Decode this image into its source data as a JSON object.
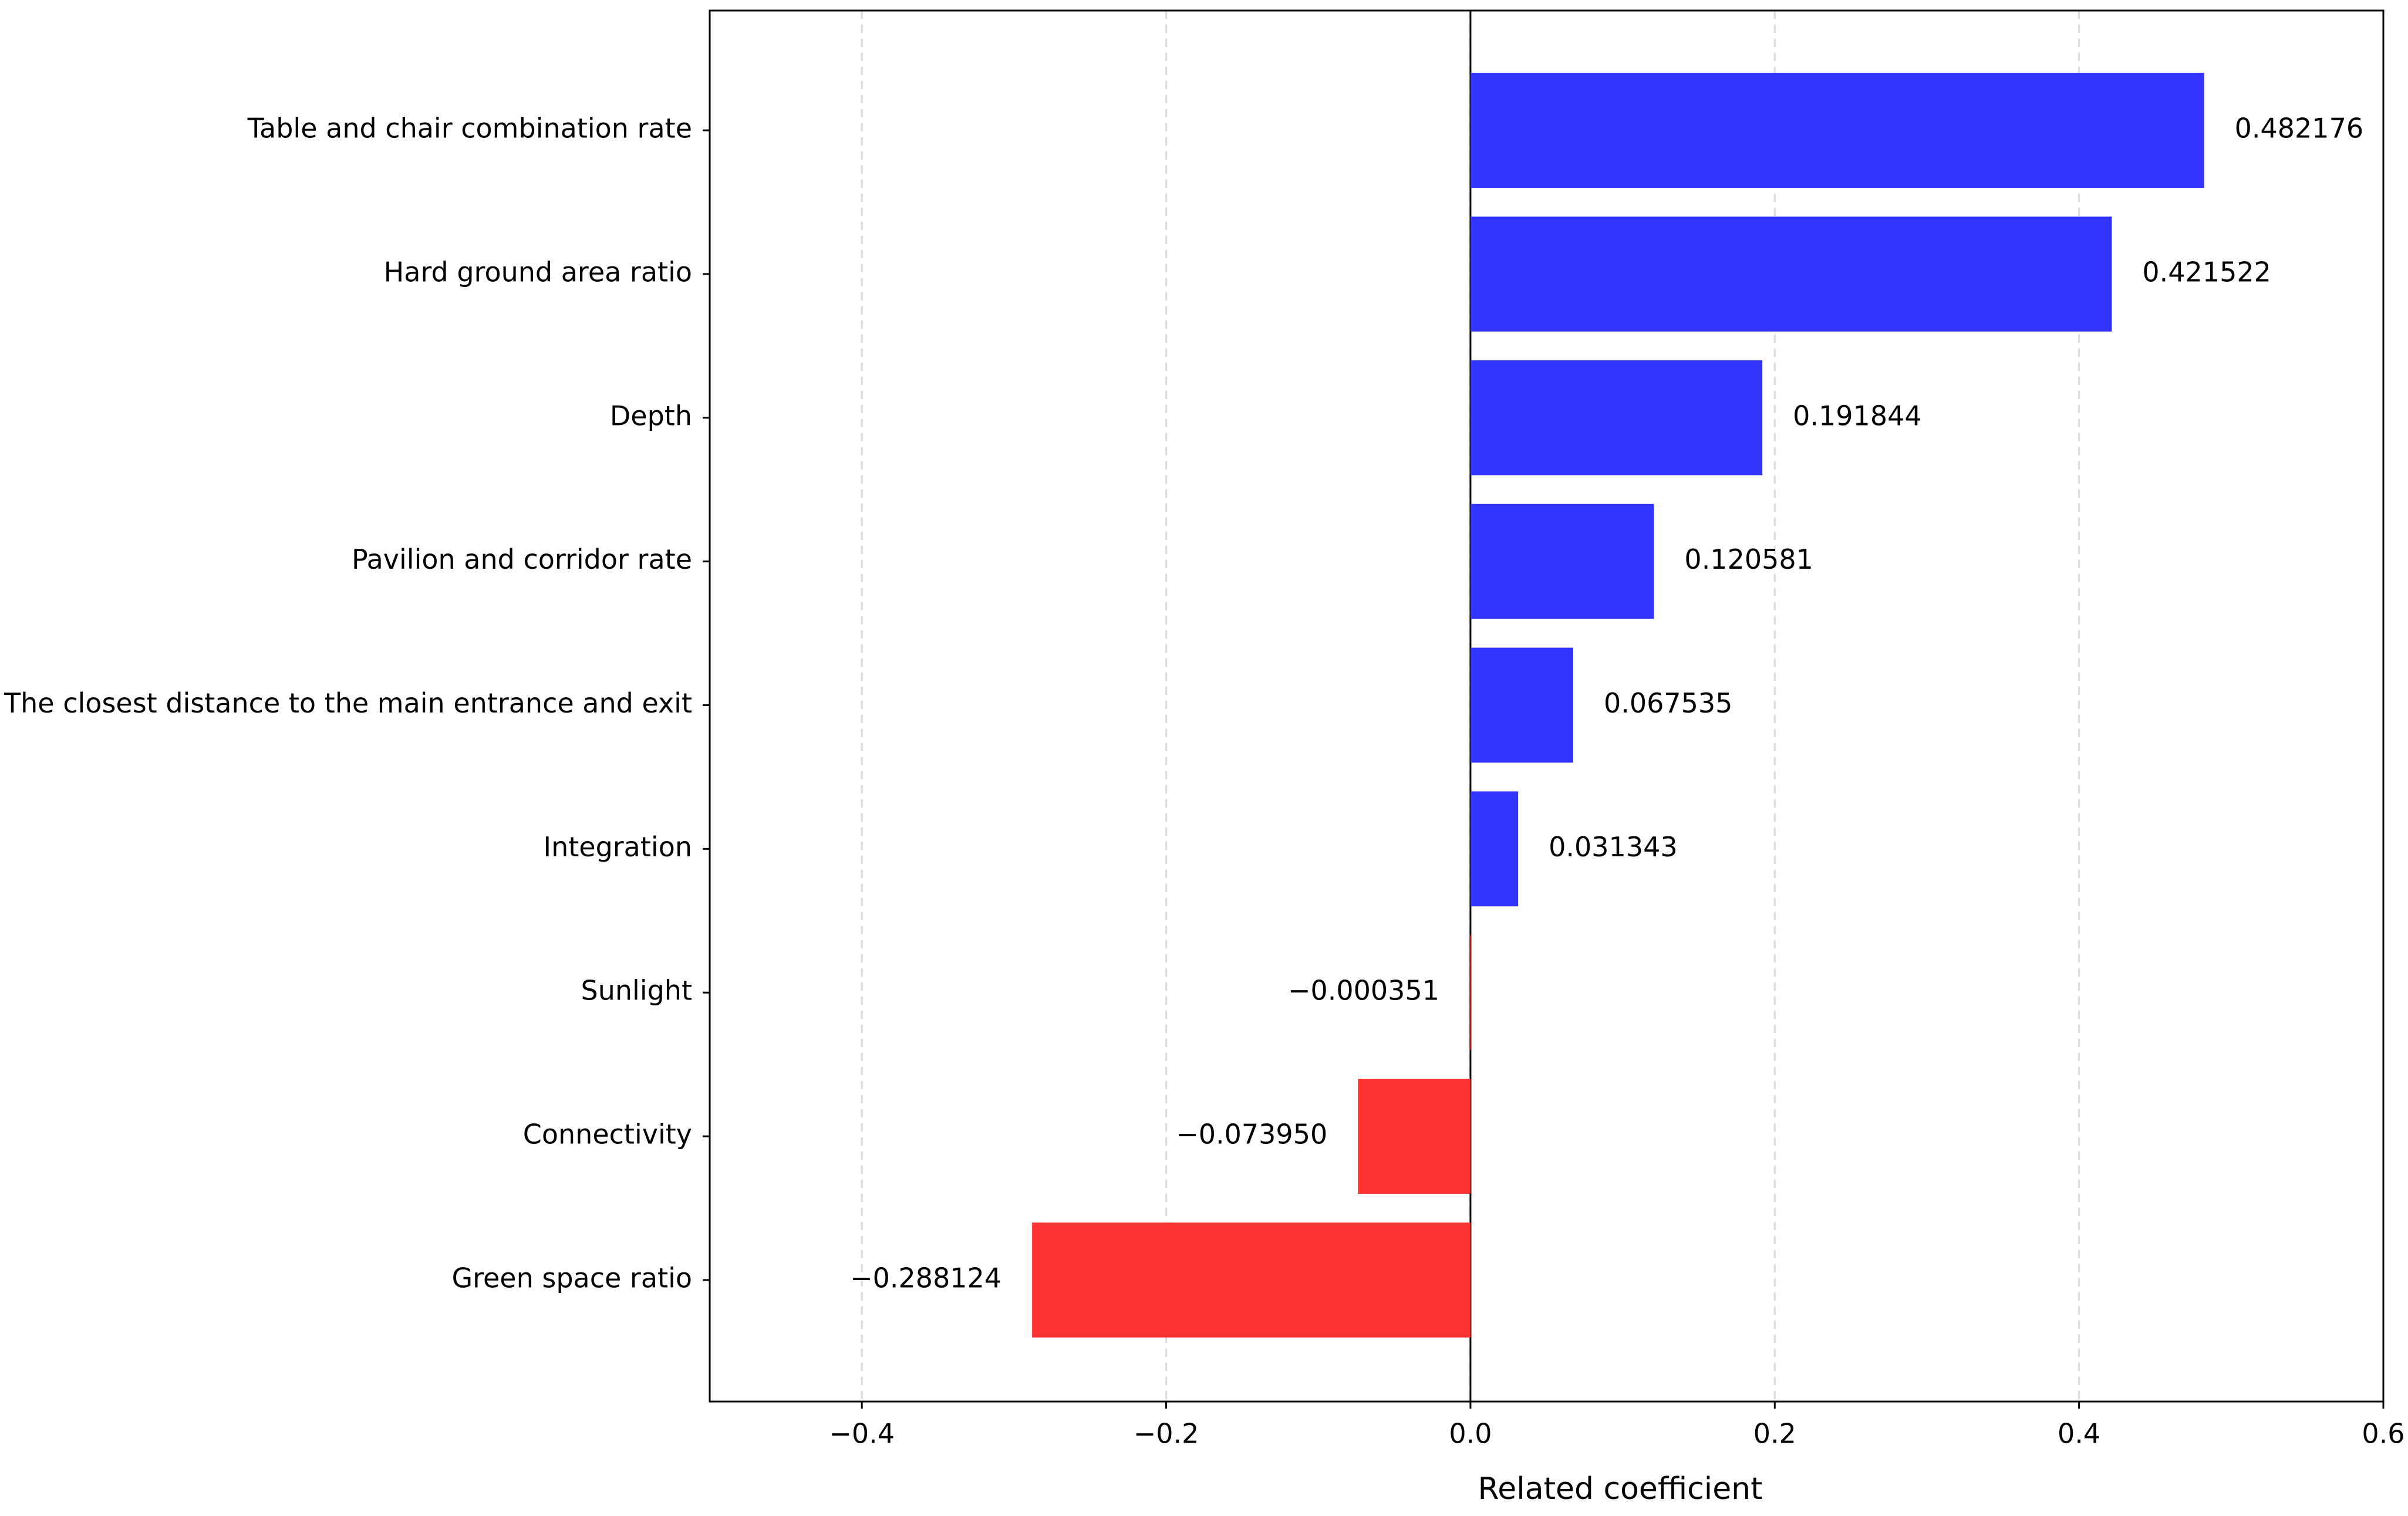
{
  "chart_data": {
    "type": "barh",
    "x_label": "Related coefficient",
    "categories": [
      "Table and chair combination rate",
      "Hard ground area ratio",
      "Depth",
      "Pavilion and corridor rate",
      "The closest distance to the main entrance and exit",
      "Integration",
      "Sunlight",
      "Connectivity",
      "Green space ratio"
    ],
    "values": [
      0.482176,
      0.421522,
      0.191844,
      0.120581,
      0.067535,
      0.031343,
      -0.000351,
      -0.07395,
      -0.288124
    ],
    "value_labels": [
      "0.482176",
      "0.421522",
      "0.191844",
      "0.120581",
      "0.067535",
      "0.031343",
      "−0.000351",
      "−0.073950",
      "−0.288124"
    ],
    "colors": [
      "#3333ff",
      "#3333ff",
      "#3333ff",
      "#3333ff",
      "#3333ff",
      "#3333ff",
      "#ff3333",
      "#ff3333",
      "#ff3333"
    ],
    "xlim": [
      -0.5,
      0.6
    ],
    "xticks": [
      {
        "value": -0.4,
        "label": "−0.4"
      },
      {
        "value": -0.2,
        "label": "−0.2"
      },
      {
        "value": 0,
        "label": "0.0"
      },
      0.2,
      0.4,
      0.6
    ],
    "grid": true
  }
}
